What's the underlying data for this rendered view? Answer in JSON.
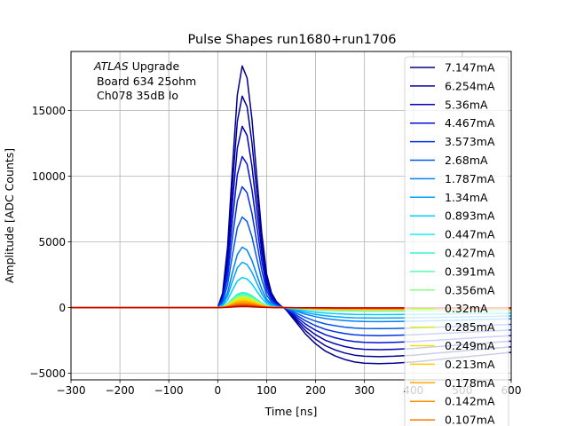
{
  "chart_data": {
    "type": "line",
    "title": "Pulse Shapes run1680+run1706",
    "xlabel": "Time [ns]",
    "ylabel": "Amplitude [ADC Counts]",
    "xlim": [
      -300,
      600
    ],
    "ylim": [
      -5500,
      19500
    ],
    "xticks": [
      -300,
      -200,
      -100,
      0,
      100,
      200,
      300,
      400,
      500,
      600
    ],
    "yticks": [
      -5000,
      0,
      5000,
      10000,
      15000
    ],
    "xtick_labels": [
      "−300",
      "−200",
      "−100",
      "0",
      "100",
      "200",
      "300",
      "400",
      "500",
      "600"
    ],
    "ytick_labels": [
      "−5000",
      "0",
      "5000",
      "10000",
      "15000"
    ],
    "grid": true,
    "legend_position": "right",
    "annotation": {
      "italic": "ATLAS",
      "line1": " Upgrade",
      "line2": "Board 634 25ohm",
      "line3": "Ch078 35dB lo"
    },
    "pulse_shape": {
      "x": [
        -300,
        0,
        10,
        20,
        30,
        40,
        50,
        60,
        70,
        80,
        90,
        100,
        110,
        120,
        130,
        135,
        140,
        160,
        180,
        200,
        220,
        240,
        260,
        280,
        300,
        330,
        360,
        400,
        450,
        500,
        550,
        600
      ],
      "y_normalized": [
        0,
        0,
        0.06,
        0.25,
        0.58,
        0.88,
        1.0,
        0.95,
        0.78,
        0.54,
        0.31,
        0.14,
        0.06,
        0.025,
        0.005,
        0,
        -0.01,
        -0.06,
        -0.11,
        -0.15,
        -0.18,
        -0.2,
        -0.215,
        -0.225,
        -0.23,
        -0.232,
        -0.23,
        -0.225,
        -0.215,
        -0.205,
        -0.195,
        -0.185
      ]
    },
    "series": [
      {
        "name": "7.147mA",
        "color": "#00008b",
        "peak": 18400
      },
      {
        "name": "6.254mA",
        "color": "#000099",
        "peak": 16100
      },
      {
        "name": "5.36mA",
        "color": "#0000b4",
        "peak": 13800
      },
      {
        "name": "4.467mA",
        "color": "#0010d8",
        "peak": 11500
      },
      {
        "name": "3.573mA",
        "color": "#0033e6",
        "peak": 9200
      },
      {
        "name": "2.68mA",
        "color": "#0058ee",
        "peak": 6900
      },
      {
        "name": "1.787mA",
        "color": "#0080f6",
        "peak": 4600
      },
      {
        "name": "1.34mA",
        "color": "#00a4fa",
        "peak": 3450
      },
      {
        "name": "0.893mA",
        "color": "#00ccff",
        "peak": 2300
      },
      {
        "name": "0.447mA",
        "color": "#1af0f0",
        "peak": 1150
      },
      {
        "name": "0.427mA",
        "color": "#33f5d0",
        "peak": 1100
      },
      {
        "name": "0.391mA",
        "color": "#55ffb0",
        "peak": 1005
      },
      {
        "name": "0.356mA",
        "color": "#88ff88",
        "peak": 915
      },
      {
        "name": "0.32mA",
        "color": "#b4ff4a",
        "peak": 825
      },
      {
        "name": "0.285mA",
        "color": "#dcf020",
        "peak": 735
      },
      {
        "name": "0.249mA",
        "color": "#f2e200",
        "peak": 640
      },
      {
        "name": "0.213mA",
        "color": "#ffcc00",
        "peak": 550
      },
      {
        "name": "0.178mA",
        "color": "#ffaa00",
        "peak": 460
      },
      {
        "name": "0.142mA",
        "color": "#ff9000",
        "peak": 365
      },
      {
        "name": "0.107mA",
        "color": "#ff7700",
        "peak": 275
      },
      {
        "name": "",
        "color": "#f23c00",
        "peak": 185
      },
      {
        "name": "",
        "color": "#cc0000",
        "peak": 92
      }
    ]
  }
}
